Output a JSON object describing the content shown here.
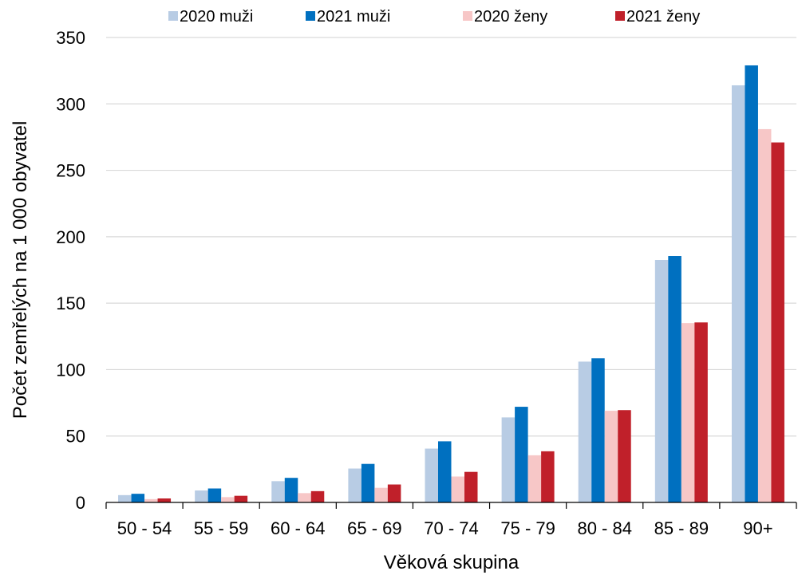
{
  "chart_data": {
    "type": "bar",
    "title": "",
    "xlabel": "Věková skupina",
    "ylabel": "Počet zemřelých na 1 000 obyvatel",
    "ylim": [
      0,
      350
    ],
    "yticks": [
      "0",
      "50",
      "100",
      "150",
      "200",
      "250",
      "300",
      "350"
    ],
    "grid": true,
    "legend": "top",
    "categories": [
      "50 - 54",
      "55 - 59",
      "60 - 64",
      "65 - 69",
      "70 - 74",
      "75 - 79",
      "80 - 84",
      "85 - 89",
      "90+"
    ],
    "series": [
      {
        "name": "2020 muži",
        "color": "#b8cce4",
        "values": [
          5.5,
          9,
          16,
          25.5,
          40.5,
          64,
          106,
          182.5,
          314
        ]
      },
      {
        "name": "2021 muži",
        "color": "#0070c0",
        "values": [
          6.5,
          10.5,
          18.5,
          29,
          46,
          72,
          108.5,
          185.5,
          329
        ]
      },
      {
        "name": "2020 ženy",
        "color": "#f7c7c7",
        "values": [
          2.5,
          4,
          7,
          11,
          19.5,
          35.5,
          69,
          135,
          281
        ]
      },
      {
        "name": "2021 ženy",
        "color": "#c0202a",
        "values": [
          3,
          5,
          8.5,
          13.5,
          23,
          38.5,
          69.5,
          135.5,
          271
        ]
      }
    ]
  }
}
